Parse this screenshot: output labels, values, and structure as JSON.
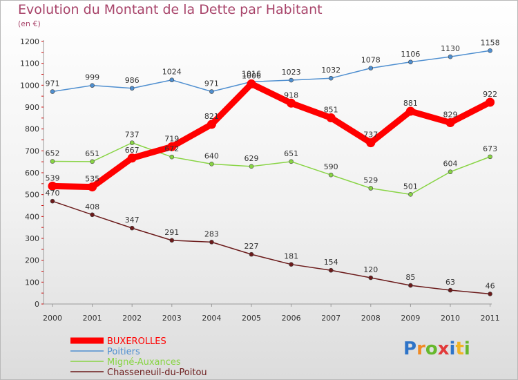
{
  "title": "Evolution du Montant de la Dette par Habitant",
  "subtitle": "(en €)",
  "logo_text": "Proxiti",
  "chart_data": {
    "type": "line",
    "x": [
      "2000",
      "2001",
      "2002",
      "2003",
      "2004",
      "2005",
      "2006",
      "2007",
      "2008",
      "2009",
      "2010",
      "2011"
    ],
    "ylim": [
      0,
      1200
    ],
    "yticks": [
      "0",
      "100",
      "200",
      "300",
      "400",
      "500",
      "600",
      "700",
      "800",
      "900",
      "1000",
      "1100",
      "1200"
    ],
    "grid": false,
    "legend_position": "bottom-left",
    "series": [
      {
        "name": "BUXEROLLES",
        "color": "#ff0000",
        "thick": true,
        "values": [
          539,
          535,
          667,
          719,
          821,
          1006,
          918,
          851,
          737,
          881,
          829,
          922
        ],
        "labels": [
          "539",
          "535",
          "667",
          "719",
          "821",
          "1006",
          "918",
          "851",
          "737",
          "881",
          "829",
          "922"
        ]
      },
      {
        "name": "Poitiers",
        "color": "#4f8fd0",
        "thick": false,
        "values": [
          971,
          999,
          986,
          1024,
          971,
          1016,
          1023,
          1032,
          1078,
          1106,
          1130,
          1158
        ],
        "labels": [
          "971",
          "999",
          "986",
          "1024",
          "971",
          "1016",
          "1023",
          "1032",
          "1078",
          "1106",
          "1130",
          "1158"
        ]
      },
      {
        "name": "Migné-Auxances",
        "color": "#88d444",
        "thick": false,
        "values": [
          652,
          651,
          737,
          672,
          640,
          629,
          651,
          590,
          529,
          501,
          604,
          673
        ],
        "labels": [
          "652",
          "651",
          "737",
          "672",
          "640",
          "629",
          "651",
          "590",
          "529",
          "501",
          "604",
          "673"
        ]
      },
      {
        "name": "Chasseneuil-du-Poitou",
        "color": "#6b1a1a",
        "thick": false,
        "values": [
          470,
          408,
          347,
          291,
          283,
          227,
          181,
          154,
          120,
          85,
          63,
          46
        ],
        "labels": [
          "470",
          "408",
          "347",
          "291",
          "283",
          "227",
          "181",
          "154",
          "120",
          "85",
          "63",
          "46"
        ]
      }
    ]
  }
}
